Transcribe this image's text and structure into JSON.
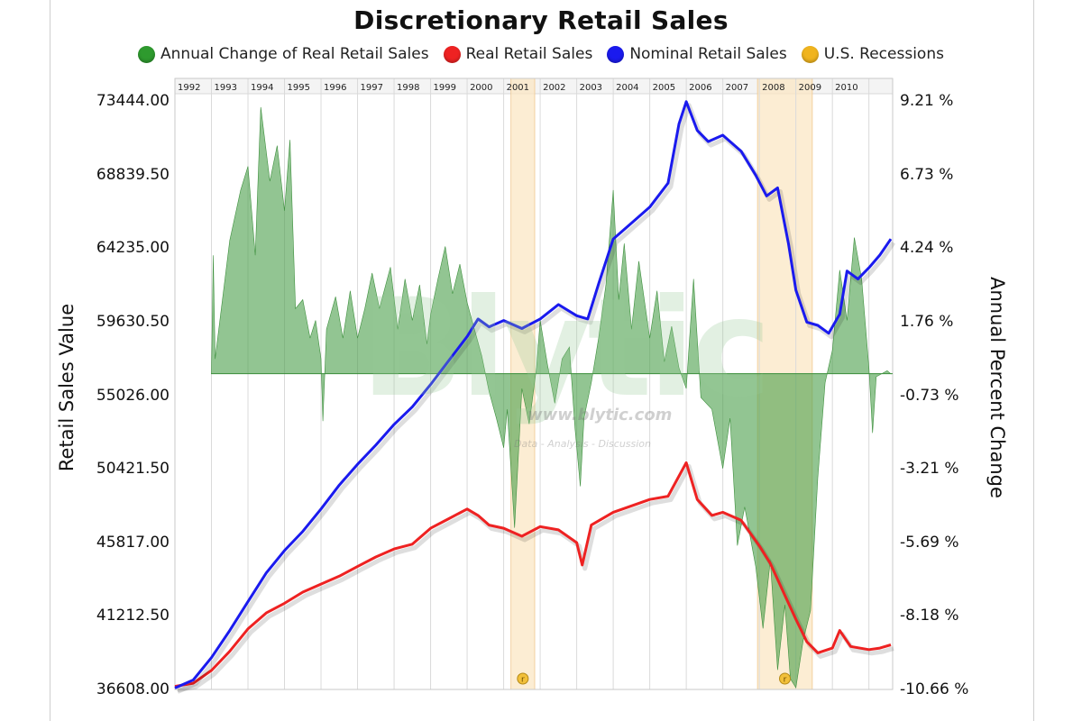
{
  "chart_data": {
    "type": "line",
    "title": "Discretionary Retail Sales",
    "ylabel": "Retail Sales Value",
    "ylabel_right": "Annual Percent Change",
    "ylim": [
      36608.0,
      73444.0
    ],
    "ylim_right": [
      -10.66,
      9.21
    ],
    "yticks": [
      "73444.00",
      "68839.50",
      "64235.00",
      "59630.50",
      "55026.00",
      "50421.50",
      "45817.00",
      "41212.50",
      "36608.00"
    ],
    "yticks_right": [
      "9.21 %",
      "6.73 %",
      "4.24 %",
      "1.76 %",
      "-0.73 %",
      "-3.21 %",
      "-5.69 %",
      "-8.18 %",
      "-10.66 %"
    ],
    "year_labels": [
      "1992",
      "1993",
      "1994",
      "1995",
      "1996",
      "1997",
      "1998",
      "1999",
      "2000",
      "2001",
      "2002",
      "2003",
      "2004",
      "2005",
      "2006",
      "2007",
      "2008",
      "2009",
      "2010"
    ],
    "legend_position": "top-center",
    "grid": "vertical year lines",
    "legend": [
      {
        "name": "Annual Change of Real Retail Sales",
        "color": "#2e9a2e"
      },
      {
        "name": "Real Retail Sales",
        "color": "#ee2222"
      },
      {
        "name": "Nominal Retail Sales",
        "color": "#1a1aee"
      },
      {
        "name": "U.S. Recessions",
        "color": "#f0b41e"
      }
    ],
    "recessions": [
      [
        2001.2,
        2001.85
      ],
      [
        2007.95,
        2009.45
      ]
    ],
    "recession_markers": [
      "r",
      "r"
    ],
    "series": [
      {
        "name": "Nominal Retail Sales",
        "color": "#1a1aee",
        "axis": "left",
        "points": [
          [
            1992.0,
            36700
          ],
          [
            1992.5,
            37200
          ],
          [
            1993.0,
            38600
          ],
          [
            1993.5,
            40300
          ],
          [
            1994.0,
            42100
          ],
          [
            1994.5,
            43900
          ],
          [
            1995.0,
            45300
          ],
          [
            1995.5,
            46500
          ],
          [
            1996.0,
            47900
          ],
          [
            1996.5,
            49400
          ],
          [
            1997.0,
            50700
          ],
          [
            1997.5,
            51900
          ],
          [
            1998.0,
            53200
          ],
          [
            1998.5,
            54300
          ],
          [
            1999.0,
            55700
          ],
          [
            1999.5,
            57200
          ],
          [
            2000.0,
            58700
          ],
          [
            2000.3,
            59800
          ],
          [
            2000.6,
            59300
          ],
          [
            2001.0,
            59700
          ],
          [
            2001.5,
            59200
          ],
          [
            2002.0,
            59800
          ],
          [
            2002.5,
            60700
          ],
          [
            2003.0,
            60000
          ],
          [
            2003.3,
            59800
          ],
          [
            2003.6,
            62000
          ],
          [
            2004.0,
            64800
          ],
          [
            2004.5,
            65800
          ],
          [
            2005.0,
            66800
          ],
          [
            2005.5,
            68300
          ],
          [
            2005.8,
            72000
          ],
          [
            2006.0,
            73400
          ],
          [
            2006.3,
            71600
          ],
          [
            2006.6,
            70900
          ],
          [
            2007.0,
            71300
          ],
          [
            2007.5,
            70300
          ],
          [
            2007.9,
            68800
          ],
          [
            2008.2,
            67500
          ],
          [
            2008.5,
            68000
          ],
          [
            2008.8,
            64500
          ],
          [
            2009.0,
            61600
          ],
          [
            2009.3,
            59600
          ],
          [
            2009.6,
            59400
          ],
          [
            2009.9,
            58900
          ],
          [
            2010.2,
            60100
          ],
          [
            2010.4,
            62800
          ],
          [
            2010.7,
            62300
          ],
          [
            2011.0,
            63000
          ],
          [
            2011.3,
            63800
          ],
          [
            2011.6,
            64800
          ]
        ]
      },
      {
        "name": "Real Retail Sales",
        "color": "#ee2222",
        "axis": "left",
        "points": [
          [
            1992.0,
            36800
          ],
          [
            1992.5,
            37000
          ],
          [
            1993.0,
            37800
          ],
          [
            1993.5,
            39000
          ],
          [
            1994.0,
            40400
          ],
          [
            1994.5,
            41400
          ],
          [
            1995.0,
            42000
          ],
          [
            1995.5,
            42700
          ],
          [
            1996.0,
            43200
          ],
          [
            1996.5,
            43700
          ],
          [
            1997.0,
            44300
          ],
          [
            1997.5,
            44900
          ],
          [
            1998.0,
            45400
          ],
          [
            1998.5,
            45700
          ],
          [
            1999.0,
            46700
          ],
          [
            1999.5,
            47300
          ],
          [
            2000.0,
            47900
          ],
          [
            2000.3,
            47500
          ],
          [
            2000.6,
            46900
          ],
          [
            2001.0,
            46700
          ],
          [
            2001.5,
            46200
          ],
          [
            2002.0,
            46800
          ],
          [
            2002.5,
            46600
          ],
          [
            2003.0,
            45800
          ],
          [
            2003.15,
            44400
          ],
          [
            2003.4,
            46900
          ],
          [
            2004.0,
            47700
          ],
          [
            2004.5,
            48100
          ],
          [
            2005.0,
            48500
          ],
          [
            2005.5,
            48700
          ],
          [
            2006.0,
            50800
          ],
          [
            2006.3,
            48500
          ],
          [
            2006.7,
            47500
          ],
          [
            2007.0,
            47700
          ],
          [
            2007.5,
            47200
          ],
          [
            2008.0,
            45600
          ],
          [
            2008.3,
            44500
          ],
          [
            2008.7,
            42500
          ],
          [
            2009.0,
            41000
          ],
          [
            2009.3,
            39600
          ],
          [
            2009.6,
            38900
          ],
          [
            2010.0,
            39200
          ],
          [
            2010.2,
            40300
          ],
          [
            2010.5,
            39300
          ],
          [
            2011.0,
            39100
          ],
          [
            2011.3,
            39200
          ],
          [
            2011.6,
            39400
          ]
        ]
      },
      {
        "name": "Annual Change of Real Retail Sales",
        "color": "#2e9a2e",
        "axis": "right",
        "points": [
          [
            1993.0,
            0.0
          ],
          [
            1993.05,
            4.0
          ],
          [
            1993.1,
            0.5
          ],
          [
            1993.5,
            4.5
          ],
          [
            1993.8,
            6.2
          ],
          [
            1994.0,
            7.0
          ],
          [
            1994.2,
            4.0
          ],
          [
            1994.35,
            9.0
          ],
          [
            1994.6,
            6.5
          ],
          [
            1994.8,
            7.7
          ],
          [
            1995.0,
            5.5
          ],
          [
            1995.15,
            7.9
          ],
          [
            1995.3,
            2.2
          ],
          [
            1995.5,
            2.5
          ],
          [
            1995.7,
            1.2
          ],
          [
            1995.85,
            1.8
          ],
          [
            1996.0,
            0.5
          ],
          [
            1996.05,
            -1.6
          ],
          [
            1996.15,
            1.5
          ],
          [
            1996.4,
            2.6
          ],
          [
            1996.6,
            1.2
          ],
          [
            1996.8,
            2.8
          ],
          [
            1997.0,
            1.2
          ],
          [
            1997.2,
            2.2
          ],
          [
            1997.4,
            3.4
          ],
          [
            1997.6,
            2.2
          ],
          [
            1997.9,
            3.6
          ],
          [
            1998.1,
            1.5
          ],
          [
            1998.3,
            3.2
          ],
          [
            1998.5,
            1.8
          ],
          [
            1998.7,
            3.0
          ],
          [
            1998.9,
            1.0
          ],
          [
            1999.0,
            2.0
          ],
          [
            1999.2,
            3.2
          ],
          [
            1999.4,
            4.3
          ],
          [
            1999.6,
            2.7
          ],
          [
            1999.8,
            3.7
          ],
          [
            2000.0,
            2.4
          ],
          [
            2000.2,
            1.5
          ],
          [
            2000.4,
            0.6
          ],
          [
            2000.6,
            -0.6
          ],
          [
            2000.8,
            -1.5
          ],
          [
            2001.0,
            -2.5
          ],
          [
            2001.1,
            -1.2
          ],
          [
            2001.3,
            -5.2
          ],
          [
            2001.5,
            -0.5
          ],
          [
            2001.7,
            -1.7
          ],
          [
            2001.9,
            0.2
          ],
          [
            2002.0,
            1.8
          ],
          [
            2002.2,
            0.3
          ],
          [
            2002.4,
            -1.0
          ],
          [
            2002.6,
            0.5
          ],
          [
            2002.8,
            0.9
          ],
          [
            2002.95,
            -1.8
          ],
          [
            2003.1,
            -3.8
          ],
          [
            2003.2,
            -1.5
          ],
          [
            2003.4,
            -0.3
          ],
          [
            2003.6,
            1.2
          ],
          [
            2003.8,
            3.0
          ],
          [
            2004.0,
            6.2
          ],
          [
            2004.15,
            2.5
          ],
          [
            2004.3,
            4.4
          ],
          [
            2004.5,
            1.5
          ],
          [
            2004.7,
            3.8
          ],
          [
            2005.0,
            1.2
          ],
          [
            2005.2,
            2.8
          ],
          [
            2005.4,
            0.4
          ],
          [
            2005.6,
            1.6
          ],
          [
            2005.8,
            0.2
          ],
          [
            2006.0,
            -0.5
          ],
          [
            2006.2,
            3.2
          ],
          [
            2006.4,
            -0.8
          ],
          [
            2006.7,
            -1.2
          ],
          [
            2007.0,
            -3.2
          ],
          [
            2007.2,
            -1.5
          ],
          [
            2007.4,
            -5.8
          ],
          [
            2007.6,
            -4.5
          ],
          [
            2007.9,
            -6.5
          ],
          [
            2008.1,
            -8.6
          ],
          [
            2008.3,
            -6.3
          ],
          [
            2008.5,
            -10.0
          ],
          [
            2008.7,
            -7.8
          ],
          [
            2008.85,
            -10.3
          ],
          [
            2009.0,
            -10.6
          ],
          [
            2009.2,
            -9.0
          ],
          [
            2009.4,
            -8.0
          ],
          [
            2009.6,
            -3.5
          ],
          [
            2009.8,
            -0.3
          ],
          [
            2010.0,
            0.8
          ],
          [
            2010.2,
            3.5
          ],
          [
            2010.4,
            1.8
          ],
          [
            2010.6,
            4.6
          ],
          [
            2010.8,
            3.2
          ],
          [
            2011.0,
            0.2
          ],
          [
            2011.1,
            -2.0
          ],
          [
            2011.2,
            -0.1
          ],
          [
            2011.5,
            0.1
          ],
          [
            2011.6,
            0.0
          ]
        ]
      }
    ]
  },
  "watermark": {
    "big": "Blytic",
    "url": "www.blytic.com",
    "sub": "Data - Analysis - Discussion"
  }
}
